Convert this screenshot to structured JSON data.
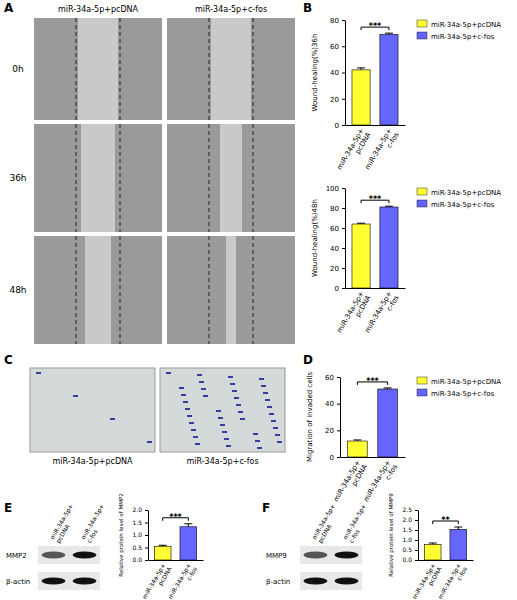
{
  "panel_labels": [
    "A",
    "B",
    "C",
    "D",
    "E",
    "F"
  ],
  "wound_images": {
    "columns": [
      "miR-34a-5p+pcDNA",
      "miR-34a-5p+c-fos"
    ],
    "rows": [
      "0h",
      "36h",
      "48h"
    ]
  },
  "invasion_images": {
    "captions": [
      "miR-34a-5p+pcDNA",
      "miR-34a-5p+c-fos"
    ]
  },
  "blots": [
    {
      "lanes": [
        "miR-34a-5p+pcDNA",
        "miR-34a-5p+c-fos"
      ],
      "proteins": [
        "MMP2",
        "β-actin"
      ]
    },
    {
      "lanes": [
        "miR-34a-5p+pcDNA",
        "miR-34a-5p+c-fos"
      ],
      "proteins": [
        "MMP9",
        "β-actin"
      ]
    }
  ],
  "chart_data": [
    {
      "type": "bar",
      "ylabel": "Wound-healing(%)36h",
      "categories": [
        "miR-34a-5p+pcDNA",
        "miR-34a-5p+c-fos"
      ],
      "values": [
        42,
        69
      ],
      "errors": [
        1.5,
        1.0
      ],
      "colors": [
        "#ffff33",
        "#6666ff"
      ],
      "ylim": [
        0,
        80
      ],
      "yticks": [
        0,
        20,
        40,
        60,
        80
      ],
      "legend": "top-right",
      "annotations": [
        "***"
      ]
    },
    {
      "type": "bar",
      "ylabel": "Wound-healing(%)48h",
      "categories": [
        "miR-34a-5p+pcDNA",
        "miR-34a-5p+c-fos"
      ],
      "values": [
        64,
        81
      ],
      "errors": [
        0.8,
        0.8
      ],
      "colors": [
        "#ffff33",
        "#6666ff"
      ],
      "ylim": [
        0,
        100
      ],
      "yticks": [
        0,
        20,
        40,
        60,
        80,
        100
      ],
      "legend": "top-right",
      "annotations": [
        "***"
      ]
    },
    {
      "type": "bar",
      "ylabel": "Migration of invaded cells",
      "categories": [
        "miR-34a-5p+pcDNA",
        "miR-34a-5p+c-fos"
      ],
      "values": [
        12,
        51
      ],
      "errors": [
        0.8,
        0.8
      ],
      "colors": [
        "#ffff33",
        "#6666ff"
      ],
      "ylim": [
        0,
        60
      ],
      "yticks": [
        0,
        20,
        40,
        60
      ],
      "legend": "top-right",
      "annotations": [
        "***"
      ]
    },
    {
      "type": "bar",
      "ylabel": "Relative protein level of MMP2",
      "categories": [
        "miR-34a-5p+pcDNA",
        "miR-34a-5p+c-fos"
      ],
      "values": [
        0.55,
        1.33
      ],
      "errors": [
        0.04,
        0.12
      ],
      "colors": [
        "#ffff33",
        "#6666ff"
      ],
      "ylim": [
        0,
        2
      ],
      "yticks": [
        {
          "value": 0,
          "label": "0.0"
        },
        {
          "value": 0.5,
          "label": "0.5"
        },
        {
          "value": 1,
          "label": "1.0"
        },
        {
          "value": 1.5,
          "label": "1.5"
        },
        {
          "value": 2,
          "label": "2.0"
        }
      ],
      "annotations": [
        "***"
      ]
    },
    {
      "type": "bar",
      "ylabel": "Relative protein level of MMP9",
      "categories": [
        "miR-34a-5p+pcDNA",
        "miR-34a-5p+c-fos"
      ],
      "values": [
        0.78,
        1.53
      ],
      "errors": [
        0.07,
        0.12
      ],
      "colors": [
        "#ffff33",
        "#6666ff"
      ],
      "ylim": [
        0,
        2.5
      ],
      "yticks": [
        {
          "value": 0,
          "label": "0.0"
        },
        {
          "value": 0.5,
          "label": "0.5"
        },
        {
          "value": 1,
          "label": "1.0"
        },
        {
          "value": 1.5,
          "label": "1.5"
        },
        {
          "value": 2,
          "label": "2.0"
        },
        {
          "value": 2.5,
          "label": "2.5"
        }
      ],
      "annotations": [
        "**"
      ]
    }
  ]
}
